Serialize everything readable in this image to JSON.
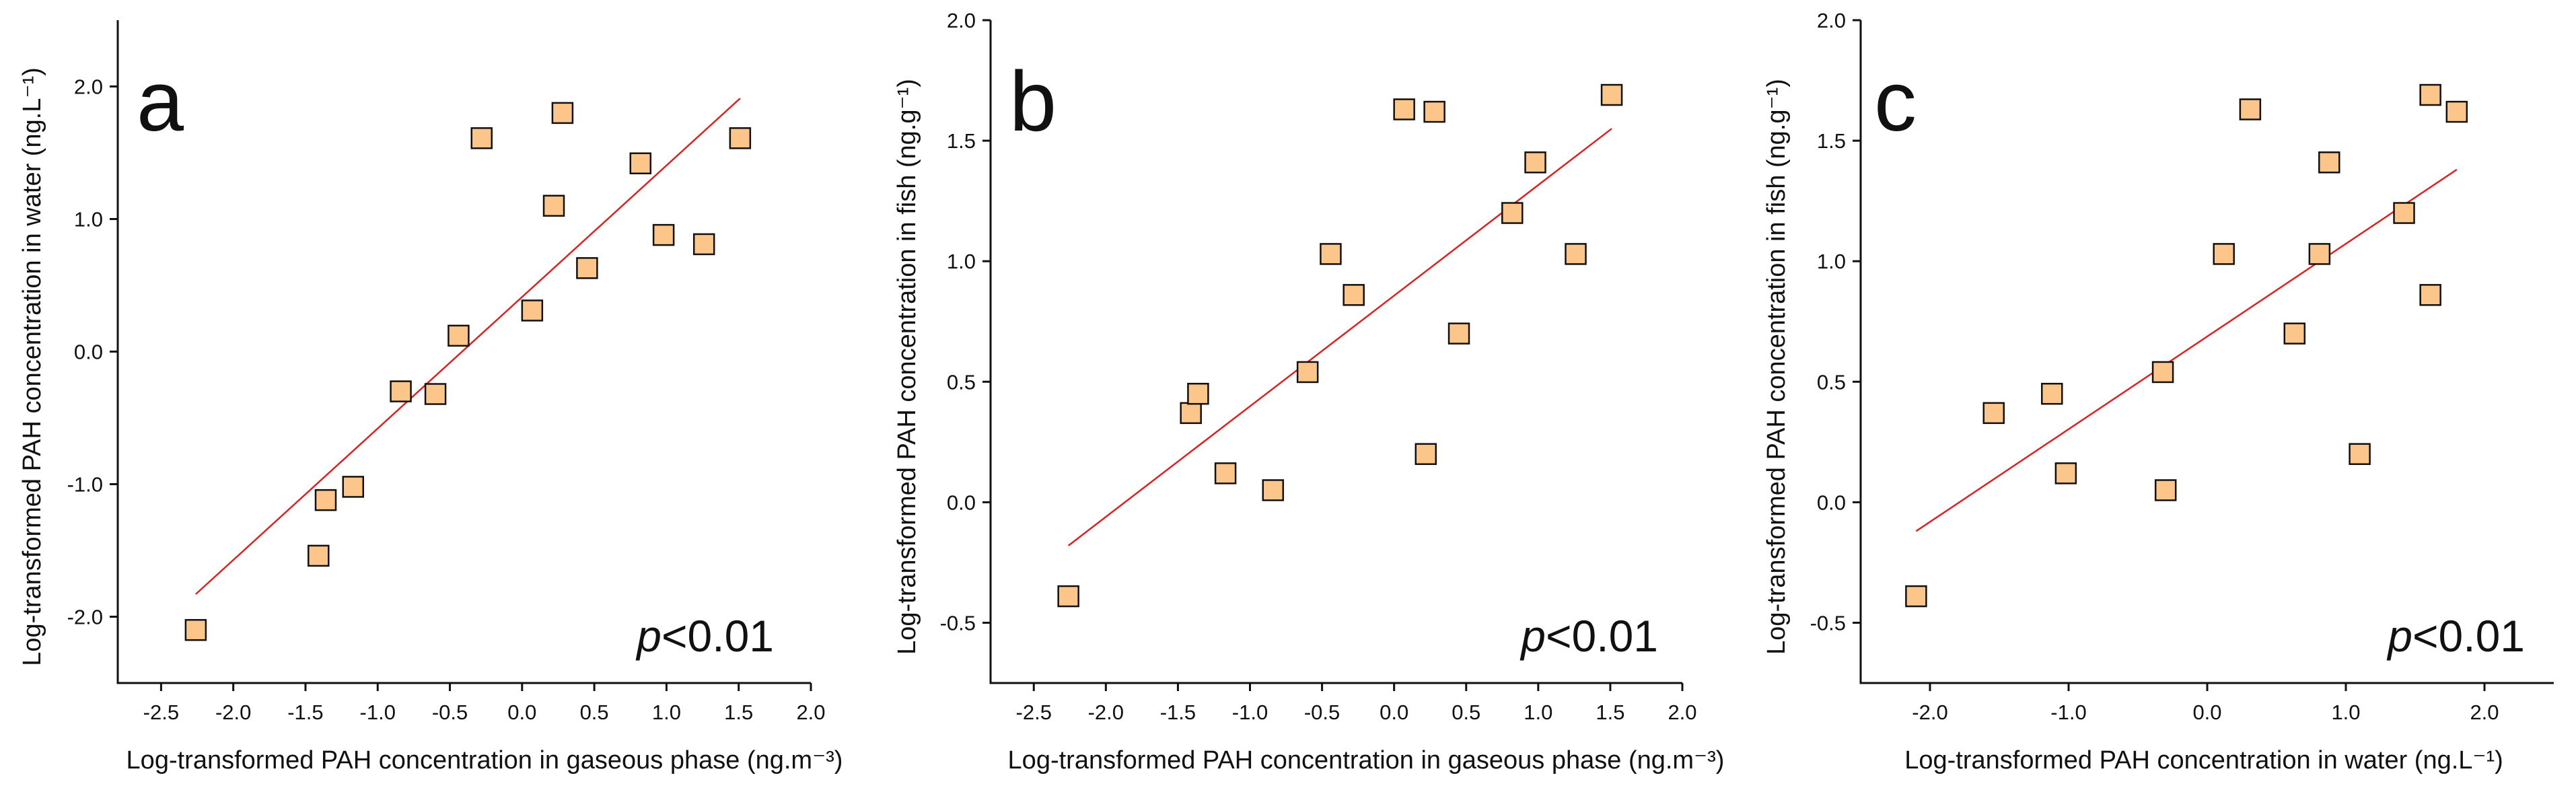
{
  "colors": {
    "point_fill": "#fcc68a",
    "point_stroke": "#111111",
    "fit_line": "#e02020",
    "axis": "#111111"
  },
  "chart_data": [
    {
      "type": "scatter",
      "panel": "a",
      "xlabel": "Log-transformed PAH concentration in gaseous phase (ng.m⁻³)",
      "ylabel": "Log-transformed PAH concentration in water (ng.L⁻¹)",
      "xlim": [
        -2.8,
        2.0
      ],
      "ylim": [
        -2.5,
        2.5
      ],
      "xticks": [
        -2.5,
        -2.0,
        -1.5,
        -1.0,
        -0.5,
        0.0,
        0.5,
        1.0,
        1.5,
        2.0
      ],
      "yticks": [
        -2.0,
        -1.0,
        0.0,
        1.0,
        2.0
      ],
      "xtick_labels": [
        "-2.5",
        "-2.0",
        "-1.5",
        "-1.0",
        "-0.5",
        "0.0",
        "0.5",
        "1.0",
        "1.5",
        "2.0"
      ],
      "ytick_labels": [
        "-2.0",
        "-1.0",
        "0.0",
        "1.0",
        "2.0"
      ],
      "points": [
        [
          -2.26,
          -2.1
        ],
        [
          -1.41,
          -1.54
        ],
        [
          -1.36,
          -1.12
        ],
        [
          -1.17,
          -1.02
        ],
        [
          -0.84,
          -0.3
        ],
        [
          -0.6,
          -0.32
        ],
        [
          -0.44,
          0.12
        ],
        [
          -0.28,
          1.61
        ],
        [
          0.07,
          0.31
        ],
        [
          0.22,
          1.1
        ],
        [
          0.28,
          1.8
        ],
        [
          0.45,
          0.63
        ],
        [
          0.82,
          1.42
        ],
        [
          0.98,
          0.88
        ],
        [
          1.26,
          0.81
        ],
        [
          1.51,
          1.61
        ]
      ],
      "fit": {
        "x": [
          -2.26,
          1.51
        ],
        "y": [
          -1.83,
          1.91
        ]
      },
      "annotation": {
        "p_symbol": "p",
        "p_rest": "<0.01"
      }
    },
    {
      "type": "scatter",
      "panel": "b",
      "xlabel": "Log-transformed PAH concentration in gaseous phase (ng.m⁻³)",
      "ylabel": "Log-transformed PAH concentration in fish (ng.g⁻¹)",
      "xlim": [
        -2.8,
        2.0
      ],
      "ylim": [
        -0.75,
        2.0
      ],
      "xticks": [
        -2.5,
        -2.0,
        -1.5,
        -1.0,
        -0.5,
        0.0,
        0.5,
        1.0,
        1.5,
        2.0
      ],
      "yticks": [
        -0.5,
        0.0,
        0.5,
        1.0,
        1.5,
        2.0
      ],
      "xtick_labels": [
        "-2.5",
        "-2.0",
        "-1.5",
        "-1.0",
        "-0.5",
        "0.0",
        "0.5",
        "1.0",
        "1.5",
        "2.0"
      ],
      "ytick_labels": [
        "-0.5",
        "0.0",
        "0.5",
        "1.0",
        "1.5",
        "2.0"
      ],
      "points": [
        [
          -2.26,
          -0.39
        ],
        [
          -1.41,
          0.37
        ],
        [
          -1.36,
          0.45
        ],
        [
          -1.17,
          0.12
        ],
        [
          -0.84,
          0.05
        ],
        [
          -0.6,
          0.54
        ],
        [
          -0.44,
          1.03
        ],
        [
          -0.28,
          0.86
        ],
        [
          0.07,
          1.63
        ],
        [
          0.22,
          0.2
        ],
        [
          0.28,
          1.62
        ],
        [
          0.45,
          0.7
        ],
        [
          0.82,
          1.2
        ],
        [
          0.98,
          1.41
        ],
        [
          1.26,
          1.03
        ],
        [
          1.51,
          1.69
        ]
      ],
      "fit": {
        "x": [
          -2.26,
          1.51
        ],
        "y": [
          -0.18,
          1.55
        ]
      },
      "annotation": {
        "p_symbol": "p",
        "p_rest": "<0.01"
      }
    },
    {
      "type": "scatter",
      "panel": "c",
      "xlabel": "Log-transformed PAH concentration in water (ng.L⁻¹)",
      "ylabel": "Log-transformed PAH concentration in fish (ng.g⁻¹)",
      "xlim": [
        -2.5,
        2.5
      ],
      "ylim": [
        -0.75,
        2.0
      ],
      "xticks": [
        -2.0,
        -1.0,
        0.0,
        1.0,
        2.0
      ],
      "yticks": [
        -0.5,
        0.0,
        0.5,
        1.0,
        1.5,
        2.0
      ],
      "xtick_labels": [
        "-2.0",
        "-1.0",
        "0.0",
        "1.0",
        "2.0"
      ],
      "ytick_labels": [
        "-0.5",
        "0.0",
        "0.5",
        "1.0",
        "1.5",
        "2.0"
      ],
      "points": [
        [
          -2.1,
          -0.39
        ],
        [
          -1.54,
          0.37
        ],
        [
          -1.12,
          0.45
        ],
        [
          -1.02,
          0.12
        ],
        [
          -0.3,
          0.05
        ],
        [
          -0.32,
          0.54
        ],
        [
          0.12,
          1.03
        ],
        [
          0.31,
          1.63
        ],
        [
          0.63,
          0.7
        ],
        [
          0.81,
          1.03
        ],
        [
          0.88,
          1.41
        ],
        [
          1.1,
          0.2
        ],
        [
          1.42,
          1.2
        ],
        [
          1.61,
          0.86
        ],
        [
          1.61,
          1.69
        ],
        [
          1.8,
          1.62
        ]
      ],
      "fit": {
        "x": [
          -2.1,
          1.8
        ],
        "y": [
          -0.12,
          1.38
        ]
      },
      "annotation": {
        "p_symbol": "p",
        "p_rest": "<0.01"
      }
    }
  ]
}
